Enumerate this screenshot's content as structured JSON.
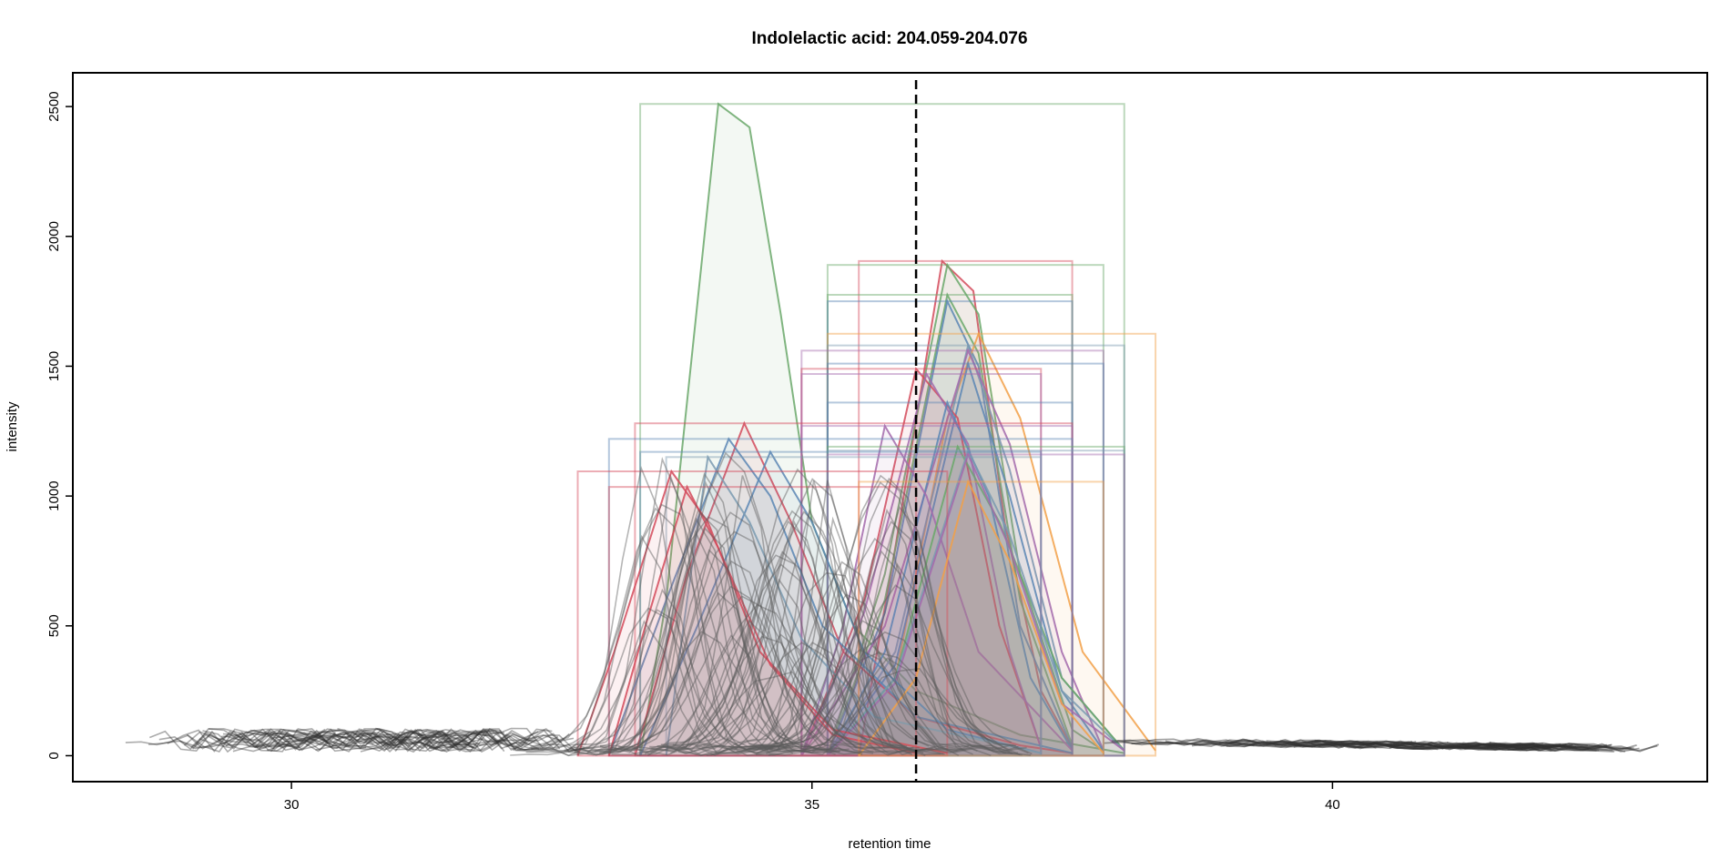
{
  "chart_data": {
    "type": "line",
    "title": "Indolelactic acid: 204.059-204.076",
    "xlabel": "retention time",
    "ylabel": "intensity",
    "xlim": [
      27.9,
      43.6
    ],
    "ylim": [
      -100,
      2630
    ],
    "x_ticks": [
      30,
      35,
      40
    ],
    "y_ticks": [
      0,
      500,
      1000,
      1500,
      2000,
      2500
    ],
    "x_tick_labels": [
      "30",
      "35",
      "40"
    ],
    "y_tick_labels": [
      "0",
      "500",
      "1000",
      "1500",
      "2000",
      "2500"
    ],
    "grid": false,
    "legend": "none",
    "reference_line": {
      "x": 36.0,
      "style": "dashed",
      "color": "#000000"
    },
    "peak_colors": [
      "#6aa86a",
      "#d44a5a",
      "#5a86b4",
      "#a36aac",
      "#f2a048",
      "#7a9ab0",
      "#5a8a5a"
    ],
    "background_trace_color": "#808080",
    "peaks": [
      {
        "name": "",
        "rt_min": 33.35,
        "rt_max": 38.0,
        "apex_rt": 34.1,
        "apex": 2510,
        "color": "#6aa86a",
        "profile": [
          [
            33.35,
            0
          ],
          [
            33.6,
            600
          ],
          [
            34.1,
            2510
          ],
          [
            34.4,
            2420
          ],
          [
            34.7,
            1700
          ],
          [
            35.0,
            900
          ],
          [
            35.4,
            500
          ],
          [
            36.0,
            250
          ],
          [
            37.0,
            80
          ],
          [
            38.0,
            10
          ]
        ]
      },
      {
        "name": "",
        "rt_min": 35.45,
        "rt_max": 37.5,
        "apex_rt": 36.25,
        "apex": 1905,
        "color": "#d44a5a",
        "profile": [
          [
            35.45,
            0
          ],
          [
            35.8,
            800
          ],
          [
            36.25,
            1905
          ],
          [
            36.55,
            1790
          ],
          [
            36.85,
            900
          ],
          [
            37.2,
            250
          ],
          [
            37.5,
            30
          ]
        ]
      },
      {
        "name": "",
        "rt_min": 35.15,
        "rt_max": 37.8,
        "apex_rt": 36.3,
        "apex": 1890,
        "color": "#6aa86a",
        "profile": [
          [
            35.15,
            0
          ],
          [
            35.7,
            700
          ],
          [
            36.3,
            1890
          ],
          [
            36.6,
            1700
          ],
          [
            37.0,
            700
          ],
          [
            37.5,
            100
          ],
          [
            37.8,
            20
          ]
        ]
      },
      {
        "name": "",
        "rt_min": 35.15,
        "rt_max": 37.5,
        "apex_rt": 36.3,
        "apex": 1775,
        "color": "#6aa86a",
        "profile": [
          [
            35.15,
            0
          ],
          [
            35.7,
            600
          ],
          [
            36.3,
            1775
          ],
          [
            36.6,
            1550
          ],
          [
            37.0,
            600
          ],
          [
            37.5,
            40
          ]
        ]
      },
      {
        "name": "",
        "rt_min": 35.15,
        "rt_max": 37.5,
        "apex_rt": 36.3,
        "apex": 1750,
        "color": "#5a86b4",
        "profile": [
          [
            35.15,
            0
          ],
          [
            35.7,
            550
          ],
          [
            36.3,
            1750
          ],
          [
            36.6,
            1500
          ],
          [
            37.0,
            500
          ],
          [
            37.5,
            30
          ]
        ]
      },
      {
        "name": "",
        "rt_min": 35.15,
        "rt_max": 38.3,
        "apex_rt": 36.6,
        "apex": 1625,
        "color": "#f2a048",
        "profile": [
          [
            35.15,
            0
          ],
          [
            35.8,
            300
          ],
          [
            36.3,
            1300
          ],
          [
            36.6,
            1625
          ],
          [
            37.0,
            1300
          ],
          [
            37.6,
            400
          ],
          [
            38.3,
            20
          ]
        ]
      },
      {
        "name": "",
        "rt_min": 35.15,
        "rt_max": 38.0,
        "apex_rt": 36.5,
        "apex": 1580,
        "color": "#7a9ab0",
        "profile": [
          [
            35.15,
            0
          ],
          [
            35.8,
            400
          ],
          [
            36.5,
            1580
          ],
          [
            36.9,
            1100
          ],
          [
            37.4,
            300
          ],
          [
            38.0,
            20
          ]
        ]
      },
      {
        "name": "",
        "rt_min": 34.9,
        "rt_max": 37.8,
        "apex_rt": 36.5,
        "apex": 1560,
        "color": "#a36aac",
        "profile": [
          [
            34.9,
            0
          ],
          [
            35.7,
            500
          ],
          [
            36.5,
            1560
          ],
          [
            36.9,
            1200
          ],
          [
            37.4,
            400
          ],
          [
            37.8,
            20
          ]
        ]
      },
      {
        "name": "",
        "rt_min": 35.15,
        "rt_max": 37.8,
        "apex_rt": 36.5,
        "apex": 1510,
        "color": "#5a86b4",
        "profile": [
          [
            35.15,
            0
          ],
          [
            35.8,
            350
          ],
          [
            36.5,
            1510
          ],
          [
            36.9,
            1000
          ],
          [
            37.4,
            250
          ],
          [
            37.8,
            20
          ]
        ]
      },
      {
        "name": "",
        "rt_min": 34.9,
        "rt_max": 37.2,
        "apex_rt": 36.0,
        "apex": 1490,
        "color": "#d44a5a",
        "profile": [
          [
            34.9,
            0
          ],
          [
            35.5,
            600
          ],
          [
            36.0,
            1490
          ],
          [
            36.4,
            1300
          ],
          [
            36.8,
            500
          ],
          [
            37.2,
            30
          ]
        ]
      },
      {
        "name": "",
        "rt_min": 34.9,
        "rt_max": 37.2,
        "apex_rt": 36.1,
        "apex": 1470,
        "color": "#a36aac",
        "profile": [
          [
            34.9,
            0
          ],
          [
            35.5,
            550
          ],
          [
            36.1,
            1470
          ],
          [
            36.5,
            1200
          ],
          [
            36.9,
            400
          ],
          [
            37.2,
            30
          ]
        ]
      },
      {
        "name": "",
        "rt_min": 35.15,
        "rt_max": 37.5,
        "apex_rt": 36.3,
        "apex": 1360,
        "color": "#5a86b4",
        "profile": [
          [
            35.15,
            0
          ],
          [
            35.7,
            400
          ],
          [
            36.3,
            1360
          ],
          [
            36.7,
            1000
          ],
          [
            37.1,
            300
          ],
          [
            37.5,
            20
          ]
        ]
      },
      {
        "name": "",
        "rt_min": 33.3,
        "rt_max": 37.5,
        "apex_rt": 34.35,
        "apex": 1280,
        "color": "#d44a5a",
        "profile": [
          [
            33.3,
            0
          ],
          [
            33.8,
            700
          ],
          [
            34.35,
            1280
          ],
          [
            34.8,
            900
          ],
          [
            35.3,
            400
          ],
          [
            36.0,
            150
          ],
          [
            37.0,
            40
          ],
          [
            37.5,
            10
          ]
        ]
      },
      {
        "name": "",
        "rt_min": 34.9,
        "rt_max": 37.5,
        "apex_rt": 35.7,
        "apex": 1270,
        "color": "#a36aac",
        "profile": [
          [
            34.9,
            0
          ],
          [
            35.3,
            500
          ],
          [
            35.7,
            1270
          ],
          [
            36.1,
            1000
          ],
          [
            36.6,
            400
          ],
          [
            37.5,
            20
          ]
        ]
      },
      {
        "name": "",
        "rt_min": 33.05,
        "rt_max": 37.5,
        "apex_rt": 34.2,
        "apex": 1220,
        "color": "#5a86b4",
        "profile": [
          [
            33.05,
            0
          ],
          [
            33.6,
            600
          ],
          [
            34.2,
            1220
          ],
          [
            34.6,
            1000
          ],
          [
            35.1,
            500
          ],
          [
            36.0,
            150
          ],
          [
            37.5,
            10
          ]
        ]
      },
      {
        "name": "",
        "rt_min": 35.15,
        "rt_max": 38.0,
        "apex_rt": 36.4,
        "apex": 1190,
        "color": "#6aa86a",
        "profile": [
          [
            35.15,
            0
          ],
          [
            35.8,
            300
          ],
          [
            36.4,
            1190
          ],
          [
            36.8,
            900
          ],
          [
            37.4,
            300
          ],
          [
            38.0,
            20
          ]
        ]
      },
      {
        "name": "",
        "rt_min": 35.15,
        "rt_max": 38.0,
        "apex_rt": 36.5,
        "apex": 1175,
        "color": "#7a9ab0",
        "profile": [
          [
            35.15,
            0
          ],
          [
            35.8,
            300
          ],
          [
            36.5,
            1175
          ],
          [
            36.9,
            850
          ],
          [
            37.4,
            250
          ],
          [
            38.0,
            20
          ]
        ]
      },
      {
        "name": "",
        "rt_min": 35.15,
        "rt_max": 38.0,
        "apex_rt": 36.5,
        "apex": 1160,
        "color": "#a36aac",
        "profile": [
          [
            35.15,
            0
          ],
          [
            35.8,
            280
          ],
          [
            36.5,
            1160
          ],
          [
            36.9,
            800
          ],
          [
            37.4,
            200
          ],
          [
            38.0,
            20
          ]
        ]
      },
      {
        "name": "",
        "rt_min": 33.35,
        "rt_max": 37.2,
        "apex_rt": 34.6,
        "apex": 1170,
        "color": "#5a86b4",
        "profile": [
          [
            33.35,
            0
          ],
          [
            33.9,
            500
          ],
          [
            34.6,
            1170
          ],
          [
            35.0,
            900
          ],
          [
            35.5,
            400
          ],
          [
            36.3,
            100
          ],
          [
            37.2,
            10
          ]
        ]
      },
      {
        "name": "",
        "rt_min": 33.6,
        "rt_max": 37.2,
        "apex_rt": 34.0,
        "apex": 1150,
        "color": "#7a9ab0",
        "profile": [
          [
            33.6,
            0
          ],
          [
            33.8,
            600
          ],
          [
            34.0,
            1150
          ],
          [
            34.4,
            900
          ],
          [
            34.9,
            450
          ],
          [
            35.6,
            150
          ],
          [
            37.2,
            10
          ]
        ]
      },
      {
        "name": "",
        "rt_min": 32.75,
        "rt_max": 36.3,
        "apex_rt": 33.65,
        "apex": 1095,
        "color": "#d44a5a",
        "profile": [
          [
            32.75,
            0
          ],
          [
            33.1,
            400
          ],
          [
            33.65,
            1095
          ],
          [
            34.0,
            900
          ],
          [
            34.5,
            400
          ],
          [
            35.2,
            100
          ],
          [
            36.3,
            10
          ]
        ]
      },
      {
        "name": "",
        "rt_min": 33.05,
        "rt_max": 36.0,
        "apex_rt": 33.8,
        "apex": 1035,
        "color": "#d44a5a",
        "profile": [
          [
            33.05,
            0
          ],
          [
            33.4,
            500
          ],
          [
            33.8,
            1035
          ],
          [
            34.1,
            800
          ],
          [
            34.6,
            350
          ],
          [
            35.2,
            80
          ],
          [
            36.0,
            10
          ]
        ]
      },
      {
        "name": "",
        "rt_min": 35.45,
        "rt_max": 37.8,
        "apex_rt": 36.5,
        "apex": 1055,
        "color": "#f2a048",
        "profile": [
          [
            35.45,
            0
          ],
          [
            36.0,
            300
          ],
          [
            36.5,
            1055
          ],
          [
            36.9,
            750
          ],
          [
            37.4,
            200
          ],
          [
            37.8,
            10
          ]
        ]
      }
    ]
  }
}
